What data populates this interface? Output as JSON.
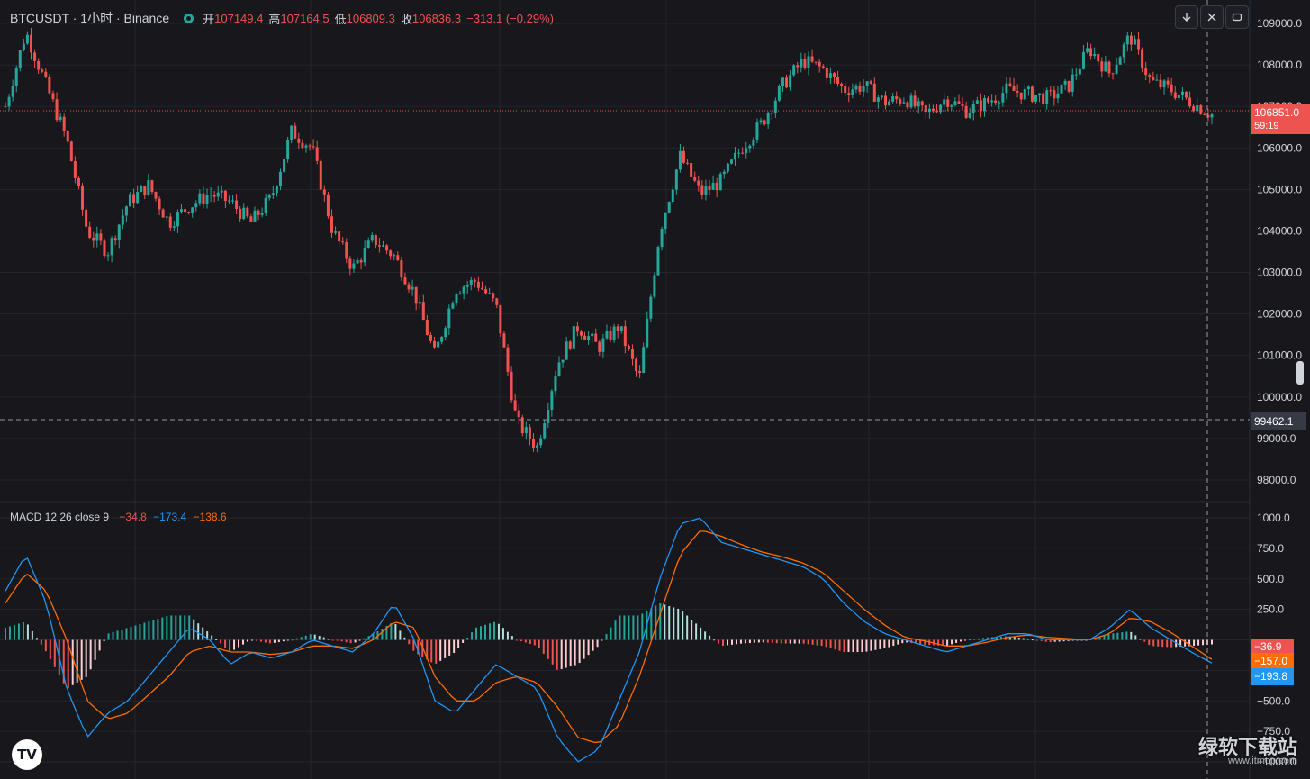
{
  "legend": {
    "symbol": "BTCUSDT · 1小时 · Binance",
    "open_label": "开",
    "open": "107149.4",
    "high_label": "高",
    "high": "107164.5",
    "low_label": "低",
    "low": "106809.3",
    "close_label": "收",
    "close": "106836.3",
    "change": "−313.1 (−0.29%)"
  },
  "toolbar": {
    "download_icon": "arrow-down-icon",
    "collapse_icon": "collapse-icon",
    "fullscreen_icon": "fullscreen-icon"
  },
  "price_axis": {
    "ticks": [
      "109000.0",
      "108000.0",
      "107000.0",
      "106000.0",
      "105000.0",
      "104000.0",
      "103000.0",
      "102000.0",
      "101000.0",
      "100000.0",
      "99000.0",
      "98000.0"
    ],
    "last_price": "106851.0",
    "countdown": "59:19",
    "crosshair_price": "99462.1"
  },
  "macd": {
    "title": "MACD 12 26 close 9",
    "hist_value": "−34.8",
    "macd_value": "−173.4",
    "signal_value": "−138.6",
    "ticks": [
      "1000.0",
      "750.0",
      "500.0",
      "250.0",
      "",
      "−250.0",
      "−500.0",
      "−750.0",
      "−1000.0"
    ],
    "label_hist": "−36.9",
    "label_signal": "−157.0",
    "label_macd": "−193.8"
  },
  "colors": {
    "up": "#26a69a",
    "down": "#ef5350",
    "macd_line": "#2196f3",
    "signal_line": "#ff6d00",
    "background": "#17171c"
  },
  "watermark": {
    "logo": "TV",
    "site": "绿软下载站",
    "url": "www.itmop.com"
  },
  "chart_data": [
    {
      "type": "candlestick",
      "title": "BTCUSDT · 1小时 · Binance",
      "ylim": [
        97800,
        109300
      ],
      "price_path": [
        107000,
        108800,
        107500,
        106200,
        104000,
        103500,
        104700,
        105100,
        104200,
        104600,
        104900,
        104700,
        104200,
        104800,
        106400,
        106000,
        104000,
        103100,
        103800,
        103400,
        102500,
        101000,
        102600,
        102800,
        102200,
        99400,
        98800,
        100800,
        101700,
        101200,
        101700,
        100400,
        104000,
        105800,
        104900,
        105200,
        106000,
        106600,
        107500,
        108100,
        107900,
        107400,
        107500,
        107100,
        107200,
        106800,
        107200,
        106900,
        107100,
        107400,
        107300,
        107200,
        107500,
        108400,
        107800,
        108700,
        107600,
        107400,
        107100,
        106800
      ],
      "note_last": 106851.0
    },
    {
      "type": "line",
      "title": "MACD 12 26 close 9",
      "ylim": [
        -1050,
        1050
      ],
      "series": [
        {
          "name": "MACD",
          "values": [
            400,
            700,
            300,
            -400,
            -800,
            -600,
            -500,
            -300,
            -100,
            100,
            0,
            -200,
            -100,
            -150,
            -100,
            0,
            -50,
            -100,
            50,
            300,
            0,
            -500,
            -600,
            -400,
            -200,
            -300,
            -400,
            -800,
            -1000,
            -900,
            -500,
            -100,
            500,
            950,
            1000,
            800,
            750,
            700,
            650,
            600,
            500,
            300,
            150,
            50,
            0,
            -50,
            -100,
            -50,
            0,
            50,
            50,
            0,
            0,
            0,
            100,
            250,
            100,
            0,
            -100,
            -190
          ]
        },
        {
          "name": "Signal",
          "values": [
            300,
            550,
            400,
            0,
            -500,
            -650,
            -600,
            -450,
            -300,
            -100,
            -50,
            -100,
            -100,
            -120,
            -100,
            -50,
            -50,
            -70,
            0,
            150,
            100,
            -300,
            -500,
            -500,
            -350,
            -300,
            -350,
            -550,
            -800,
            -850,
            -700,
            -300,
            200,
            700,
            900,
            850,
            780,
            720,
            680,
            630,
            550,
            400,
            250,
            120,
            20,
            -10,
            -50,
            -50,
            -20,
            20,
            40,
            20,
            10,
            0,
            50,
            180,
            150,
            60,
            -50,
            -160
          ]
        },
        {
          "name": "Histogram",
          "values": [
            100,
            150,
            -100,
            -400,
            -300,
            50,
            100,
            150,
            200,
            200,
            50,
            -100,
            0,
            -30,
            0,
            50,
            0,
            -30,
            50,
            150,
            -100,
            -200,
            -100,
            100,
            150,
            0,
            -50,
            -250,
            -200,
            -50,
            200,
            200,
            300,
            250,
            100,
            -50,
            -30,
            -20,
            -30,
            -30,
            -50,
            -100,
            -100,
            -70,
            -20,
            -40,
            -50,
            0,
            20,
            30,
            10,
            -20,
            -10,
            0,
            50,
            70,
            -50,
            -60,
            -50,
            -37
          ]
        }
      ]
    }
  ]
}
